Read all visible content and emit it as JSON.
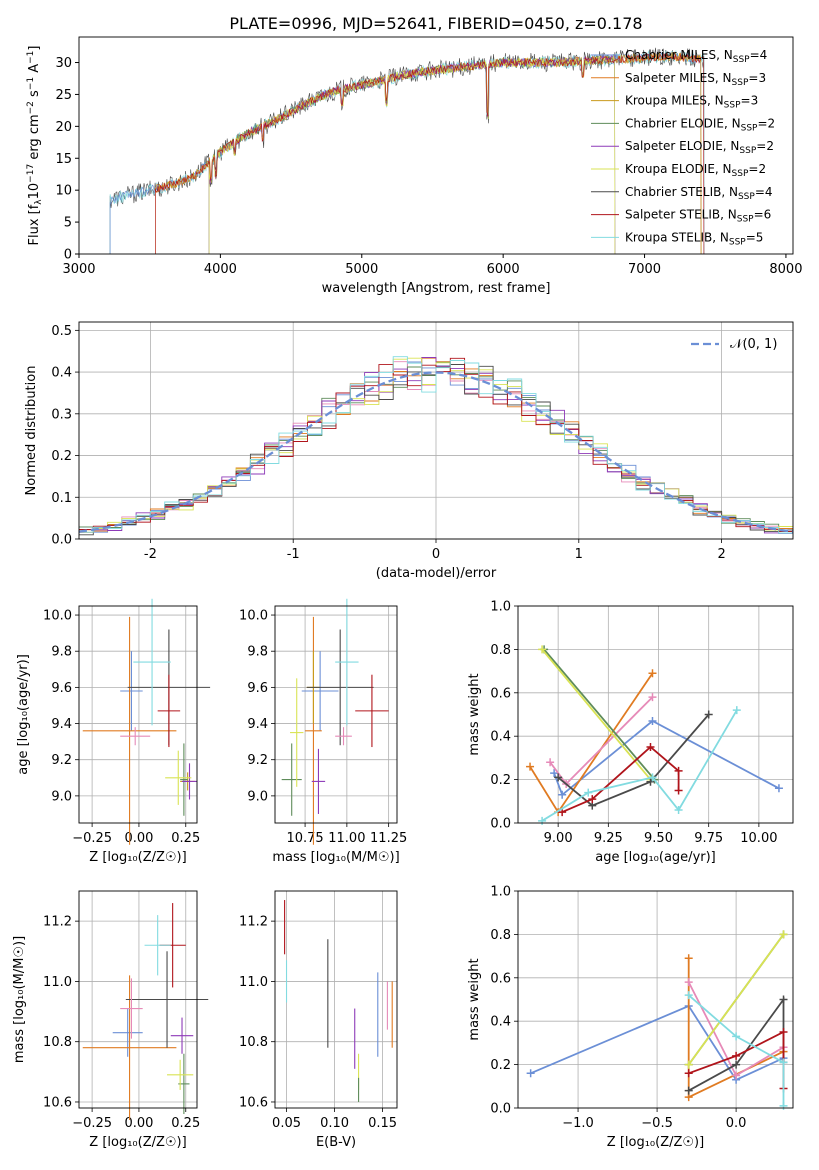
{
  "title": "PLATE=0996, MJD=52641, FIBERID=0450, z=0.178",
  "colors": {
    "CM": "#6b8fd6",
    "SM": "#e07b22",
    "KM": "#c99a1c",
    "CE": "#5e8c5a",
    "SE": "#8e3ab8",
    "KE": "#d9e354",
    "CS": "#4a4a4a",
    "SS": "#b0141b",
    "KS": "#82dbe0",
    "grid": "#b0b0b0",
    "gauss": "#6b8fd6",
    "pink": "#e68ab8"
  },
  "legend": [
    {
      "key": "CM",
      "base": "Chabrier MILES, N",
      "sub": "SSP",
      "tail": "=4"
    },
    {
      "key": "SM",
      "base": "Salpeter MILES, N",
      "sub": "SSP",
      "tail": "=3"
    },
    {
      "key": "KM",
      "base": "Kroupa MILES, N",
      "sub": "SSP",
      "tail": "=3"
    },
    {
      "key": "CE",
      "base": "Chabrier ELODIE, N",
      "sub": "SSP",
      "tail": "=2"
    },
    {
      "key": "SE",
      "base": "Salpeter ELODIE, N",
      "sub": "SSP",
      "tail": "=2"
    },
    {
      "key": "KE",
      "base": "Kroupa ELODIE, N",
      "sub": "SSP",
      "tail": "=2"
    },
    {
      "key": "CS",
      "base": "Chabrier STELIB, N",
      "sub": "SSP",
      "tail": "=4"
    },
    {
      "key": "SS",
      "base": "Salpeter STELIB, N",
      "sub": "SSP",
      "tail": "=6"
    },
    {
      "key": "KS",
      "base": "Kroupa STELIB, N",
      "sub": "SSP",
      "tail": "=5"
    }
  ],
  "chart_data": [
    {
      "id": "spectrum",
      "type": "line",
      "xlabel": "wavelength [Angstrom, rest frame]",
      "ylabel": "Flux [f_λ10^-17 erg cm^-2 s^-1 A^-1]",
      "xlim": [
        3000,
        8050
      ],
      "ylim": [
        0,
        34
      ],
      "xticks": [
        3000,
        4000,
        5000,
        6000,
        7000,
        8000
      ],
      "yticks": [
        0,
        5,
        10,
        15,
        20,
        25,
        30
      ],
      "continuum": {
        "x": [
          3220,
          3400,
          3600,
          3800,
          4000,
          4200,
          4400,
          4600,
          4800,
          5000,
          5200,
          5400,
          5600,
          5800,
          6000,
          6400,
          6800,
          7200,
          7400,
          7800
        ],
        "y": [
          8.5,
          9.5,
          10.5,
          12,
          16,
          19,
          21,
          23.5,
          25.5,
          26.5,
          27.5,
          28.5,
          29,
          29.5,
          30,
          30,
          30.5,
          31,
          30.5,
          30
        ]
      },
      "model_range": {
        "CM": [
          3220,
          7400
        ],
        "SM": [
          3540,
          7400
        ],
        "KM": [
          3540,
          7400
        ],
        "CE": [
          3920,
          6790
        ],
        "SE": [
          3920,
          6790
        ],
        "KE": [
          3920,
          6790
        ],
        "CS": [
          3220,
          7420
        ],
        "SS": [
          3540,
          7420
        ],
        "KS": [
          3220,
          7420
        ]
      }
    },
    {
      "id": "residuals",
      "type": "area",
      "xlabel": "(data-model)/error",
      "ylabel": "Normed distribution",
      "xlim": [
        -2.5,
        2.5
      ],
      "ylim": [
        0,
        0.52
      ],
      "xticks": [
        -2,
        -1,
        0,
        1,
        2
      ],
      "yticks": [
        0.0,
        0.1,
        0.2,
        0.3,
        0.4,
        0.5
      ],
      "gauss_label": "𝒩(0, 1)"
    },
    {
      "id": "age_vs_Z",
      "type": "scatter",
      "xlabel": "Z [log₁₀(Z/Z☉)]",
      "ylabel": "age [log₁₀(age/yr)]",
      "xlim": [
        -0.32,
        0.31
      ],
      "ylim": [
        8.85,
        10.05
      ],
      "xticks": [
        -0.25,
        0,
        0.25
      ],
      "xticklabels": [
        "−0.25",
        "0.00",
        "0.25"
      ],
      "yticks": [
        9.0,
        9.2,
        9.4,
        9.6,
        9.8,
        10.0
      ],
      "points": [
        {
          "k": "CM",
          "x": -0.04,
          "y": 9.58,
          "ex": 0.06,
          "ey": 0.22
        },
        {
          "k": "SM",
          "x": -0.05,
          "y": 9.36,
          "ex": 0.25,
          "ey": 0.63
        },
        {
          "k": "KM",
          "x": 0.26,
          "y": 9.08,
          "ex": 0.04,
          "ey": 0.05
        },
        {
          "k": "CE",
          "x": 0.24,
          "y": 9.09,
          "ex": 0.02,
          "ey": 0.2
        },
        {
          "k": "SE",
          "x": 0.27,
          "y": 9.08,
          "ex": 0.04,
          "ey": 0.1
        },
        {
          "k": "KE",
          "x": 0.21,
          "y": 9.1,
          "ex": 0.07,
          "ey": 0.15
        },
        {
          "k": "CS",
          "x": 0.16,
          "y": 9.6,
          "ex": 0.22,
          "ey": 0.32
        },
        {
          "k": "SS",
          "x": 0.16,
          "y": 9.47,
          "ex": 0.06,
          "ey": 0.2
        },
        {
          "k": "KS",
          "x": 0.07,
          "y": 9.74,
          "ex": 0.1,
          "ey": 0.35
        },
        {
          "k": "pink",
          "x": -0.02,
          "y": 9.33,
          "ex": 0.08,
          "ey": 0.05
        }
      ]
    },
    {
      "id": "age_vs_mass",
      "type": "scatter",
      "xlabel": "mass [log₁₀(M/M☉)]",
      "ylabel": "",
      "xlim": [
        10.57,
        11.3
      ],
      "ylim": [
        8.85,
        10.05
      ],
      "xticks": [
        10.75,
        11.0,
        11.25
      ],
      "xticklabels": [
        "10.75",
        "11.00",
        "11.25"
      ],
      "yticks": [
        9.0,
        9.2,
        9.4,
        9.6,
        9.8,
        10.0
      ],
      "points": [
        {
          "k": "CM",
          "x": 10.84,
          "y": 9.58,
          "ex": 0.11,
          "ey": 0.22
        },
        {
          "k": "SM",
          "x": 10.8,
          "y": 9.36,
          "ex": 0.05,
          "ey": 0.63
        },
        {
          "k": "KM",
          "x": 10.8,
          "y": 9.6,
          "ex": 0.04,
          "ey": 0.2
        },
        {
          "k": "CE",
          "x": 10.67,
          "y": 9.09,
          "ex": 0.06,
          "ey": 0.2
        },
        {
          "k": "SE",
          "x": 10.83,
          "y": 9.08,
          "ex": 0.04,
          "ey": 0.18
        },
        {
          "k": "KE",
          "x": 10.7,
          "y": 9.35,
          "ex": 0.04,
          "ey": 0.3
        },
        {
          "k": "CS",
          "x": 10.96,
          "y": 9.6,
          "ex": 0.2,
          "ey": 0.32
        },
        {
          "k": "SS",
          "x": 11.15,
          "y": 9.47,
          "ex": 0.1,
          "ey": 0.2
        },
        {
          "k": "KS",
          "x": 11.0,
          "y": 9.74,
          "ex": 0.07,
          "ey": 0.35
        },
        {
          "k": "pink",
          "x": 10.98,
          "y": 9.33,
          "ex": 0.05,
          "ey": 0.05
        }
      ]
    },
    {
      "id": "weight_vs_age",
      "type": "line",
      "xlabel": "age [log₁₀(age/yr)]",
      "ylabel": "mass weight",
      "xlim": [
        8.8,
        10.17
      ],
      "ylim": [
        0,
        1.0
      ],
      "xticks": [
        9.0,
        9.25,
        9.5,
        9.75,
        10.0
      ],
      "xticklabels": [
        "9.00",
        "9.25",
        "9.50",
        "9.75",
        "10.00"
      ],
      "yticks": [
        0.0,
        0.2,
        0.4,
        0.6,
        0.8,
        1.0
      ],
      "series": [
        {
          "k": "CM",
          "x": [
            8.98,
            9.02,
            9.47,
            10.1
          ],
          "y": [
            0.23,
            0.13,
            0.47,
            0.16
          ]
        },
        {
          "k": "SM",
          "x": [
            8.86,
            9.0,
            9.47
          ],
          "y": [
            0.26,
            0.05,
            0.69
          ]
        },
        {
          "k": "pink",
          "x": [
            8.96,
            9.04,
            9.47
          ],
          "y": [
            0.28,
            0.18,
            0.58
          ]
        },
        {
          "k": "CE",
          "x": [
            8.93,
            9.48
          ],
          "y": [
            0.8,
            0.2
          ]
        },
        {
          "k": "KE",
          "x": [
            8.92,
            9.46
          ],
          "y": [
            0.8,
            0.2
          ]
        },
        {
          "k": "CS",
          "x": [
            9.0,
            9.17,
            9.46,
            9.75
          ],
          "y": [
            0.21,
            0.08,
            0.19,
            0.5
          ]
        },
        {
          "k": "SS",
          "x": [
            9.02,
            9.17,
            9.46,
            9.6,
            9.6
          ],
          "y": [
            0.05,
            0.11,
            0.35,
            0.24,
            0.15
          ]
        },
        {
          "k": "KS",
          "x": [
            8.92,
            9.15,
            9.47,
            9.6,
            9.89
          ],
          "y": [
            0.01,
            0.14,
            0.21,
            0.06,
            0.52
          ]
        }
      ]
    },
    {
      "id": "mass_vs_Z",
      "type": "scatter",
      "xlabel": "Z [log₁₀(Z/Z☉)]",
      "ylabel": "mass [log₁₀(M/M☉)]",
      "xlim": [
        -0.32,
        0.31
      ],
      "ylim": [
        10.58,
        11.3
      ],
      "xticks": [
        -0.25,
        0,
        0.25
      ],
      "xticklabels": [
        "−0.25",
        "0.00",
        "0.25"
      ],
      "yticks": [
        10.6,
        10.8,
        11.0,
        11.2
      ],
      "points": [
        {
          "k": "CM",
          "x": -0.06,
          "y": 10.83,
          "ex": 0.08,
          "ey": 0.08
        },
        {
          "k": "SM",
          "x": -0.05,
          "y": 10.78,
          "ex": 0.25,
          "ey": 0.24
        },
        {
          "k": "CE",
          "x": 0.24,
          "y": 10.66,
          "ex": 0.03,
          "ey": 0.1
        },
        {
          "k": "SE",
          "x": 0.23,
          "y": 10.82,
          "ex": 0.06,
          "ey": 0.06
        },
        {
          "k": "KE",
          "x": 0.22,
          "y": 10.69,
          "ex": 0.07,
          "ey": 0.05
        },
        {
          "k": "CS",
          "x": 0.15,
          "y": 10.94,
          "ex": 0.22,
          "ey": 0.16
        },
        {
          "k": "SS",
          "x": 0.18,
          "y": 11.12,
          "ex": 0.07,
          "ey": 0.14
        },
        {
          "k": "KS",
          "x": 0.1,
          "y": 11.12,
          "ex": 0.07,
          "ey": 0.1
        },
        {
          "k": "pink",
          "x": -0.04,
          "y": 10.91,
          "ex": 0.06,
          "ey": 0.1
        }
      ]
    },
    {
      "id": "mass_vs_EBV",
      "type": "scatter",
      "xlabel": "E(B-V)",
      "ylabel": "",
      "xlim": [
        0.038,
        0.165
      ],
      "ylim": [
        10.58,
        11.3
      ],
      "xticks": [
        0.05,
        0.1,
        0.15
      ],
      "xticklabels": [
        "0.05",
        "0.10",
        "0.15"
      ],
      "yticks": [
        10.6,
        10.8,
        11.0,
        11.2
      ],
      "points": [
        {
          "k": "CM",
          "x": 0.145,
          "y": 10.89,
          "ex": 0,
          "ey": 0.14
        },
        {
          "k": "SM",
          "x": 0.16,
          "y": 10.89,
          "ex": 0,
          "ey": 0.11
        },
        {
          "k": "pink",
          "x": 0.155,
          "y": 10.92,
          "ex": 0,
          "ey": 0.08
        },
        {
          "k": "SE",
          "x": 0.121,
          "y": 10.81,
          "ex": 0,
          "ey": 0.1
        },
        {
          "k": "KE",
          "x": 0.125,
          "y": 10.7,
          "ex": 0,
          "ey": 0.06
        },
        {
          "k": "CE",
          "x": 0.125,
          "y": 10.64,
          "ex": 0,
          "ey": 0.04
        },
        {
          "k": "CS",
          "x": 0.093,
          "y": 10.96,
          "ex": 0,
          "ey": 0.18
        },
        {
          "k": "SS",
          "x": 0.048,
          "y": 11.18,
          "ex": 0,
          "ey": 0.09
        },
        {
          "k": "KS",
          "x": 0.05,
          "y": 11.0,
          "ex": 0,
          "ey": 0.07
        }
      ]
    },
    {
      "id": "weight_vs_Z",
      "type": "line",
      "xlabel": "Z [log₁₀(Z/Z☉)]",
      "ylabel": "mass weight",
      "xlim": [
        -1.38,
        0.36
      ],
      "ylim": [
        0,
        1.0
      ],
      "xticks": [
        -1.0,
        -0.5,
        0.0
      ],
      "xticklabels": [
        "−1.0",
        "−0.5",
        "0.0"
      ],
      "yticks": [
        0.0,
        0.2,
        0.4,
        0.6,
        0.8,
        1.0
      ],
      "series": [
        {
          "k": "CM",
          "x": [
            -1.3,
            -0.3,
            0.0,
            0.3
          ],
          "y": [
            0.16,
            0.47,
            0.13,
            0.23
          ]
        },
        {
          "k": "SM",
          "x": [
            -0.3,
            -0.3,
            0.3
          ],
          "y": [
            0.69,
            0.05,
            0.26
          ]
        },
        {
          "k": "pink",
          "x": [
            -0.3,
            0.0,
            0.3
          ],
          "y": [
            0.58,
            0.15,
            0.28
          ]
        },
        {
          "k": "CE",
          "x": [
            -0.3,
            0.3
          ],
          "y": [
            0.2,
            0.8
          ]
        },
        {
          "k": "KE",
          "x": [
            -0.3,
            0.3
          ],
          "y": [
            0.2,
            0.8
          ]
        },
        {
          "k": "CS",
          "x": [
            -0.3,
            0.0,
            0.3,
            0.3
          ],
          "y": [
            0.08,
            0.2,
            0.5,
            0.21
          ]
        },
        {
          "k": "SS",
          "x": [
            -0.3,
            0.0,
            0.3,
            0.3
          ],
          "y": [
            0.16,
            0.24,
            0.35,
            0.09
          ]
        },
        {
          "k": "KS",
          "x": [
            -0.3,
            0.0,
            0.3,
            0.3
          ],
          "y": [
            0.52,
            0.33,
            0.21,
            0.01
          ]
        }
      ]
    }
  ]
}
